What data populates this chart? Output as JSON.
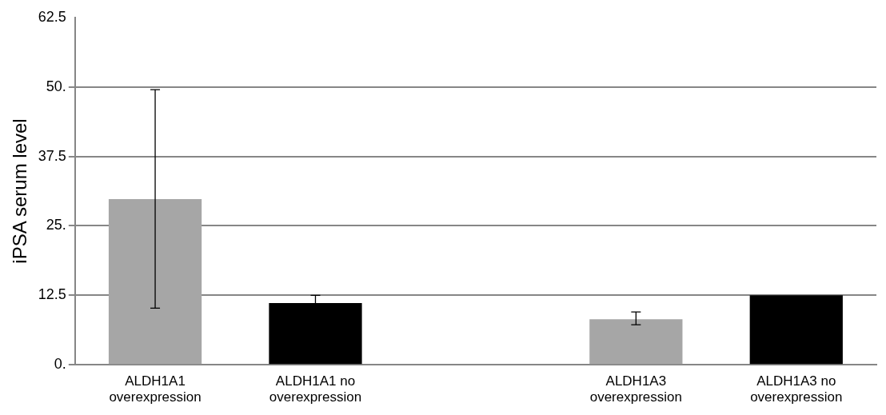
{
  "chart_data": {
    "type": "bar",
    "ylabel": "iPSA serum level",
    "categories": [
      "ALDH1A1 overexpression",
      "ALDH1A1 no overexpression",
      null,
      "ALDH1A3 overexpression",
      "ALDH1A3 no overexpression"
    ],
    "values": [
      29.8,
      11.1,
      null,
      8.2,
      12.5
    ],
    "colors": [
      "#a6a6a6",
      "#000000",
      "#a6a6a6",
      "#a6a6a6",
      "#000000"
    ],
    "errors": [
      [
        10.2,
        49.5
      ],
      1.4,
      null,
      [
        7.2,
        9.5
      ],
      null
    ],
    "ylim": [
      0,
      62.5
    ],
    "yticks": [
      {
        "value": 0,
        "label": "0."
      },
      12.5,
      {
        "value": 25,
        "label": "25."
      },
      37.5,
      {
        "value": 50,
        "label": "50."
      },
      62.5
    ],
    "grid": "y",
    "legend": false
  }
}
